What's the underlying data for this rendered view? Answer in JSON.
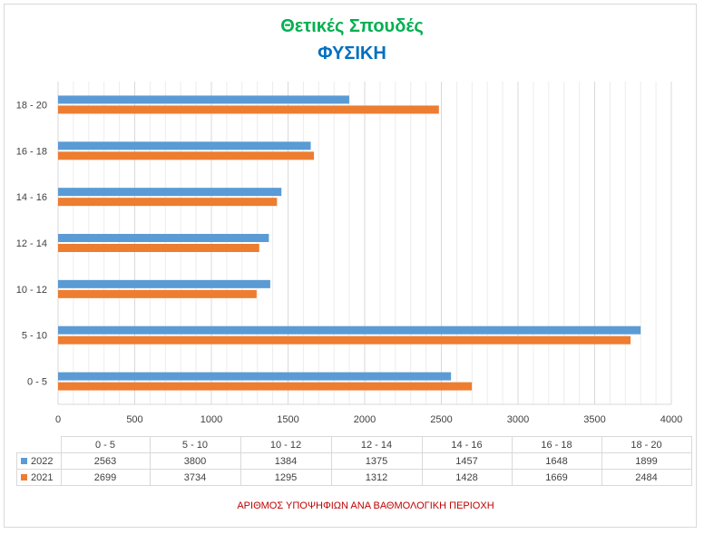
{
  "chart_data": {
    "type": "bar",
    "orientation": "horizontal",
    "title": "Θετικές Σπουδές",
    "subtitle": "ΦΥΣΙΚΗ",
    "categories": [
      "0 - 5",
      "5 - 10",
      "10 - 12",
      "12 - 14",
      "14 - 16",
      "16 - 18",
      "18 - 20"
    ],
    "series": [
      {
        "name": "2022",
        "color": "#5b9bd5",
        "values": [
          2563,
          3800,
          1384,
          1375,
          1457,
          1648,
          1899
        ]
      },
      {
        "name": "2021",
        "color": "#ed7d31",
        "values": [
          2699,
          3734,
          1295,
          1312,
          1428,
          1669,
          2484
        ]
      }
    ],
    "xlim": [
      0,
      4000
    ],
    "xticks": [
      "0",
      "500",
      "1000",
      "1500",
      "2000",
      "2500",
      "3000",
      "3500",
      "4000"
    ],
    "xlabel": "ΑΡΙΘΜΟΣ ΥΠΟΨΗΦΙΩΝ ΑΝΑ ΒΑΘΜΟΛΟΓΙΚΗ ΠΕΡΙΟΧΗ",
    "grid": true,
    "data_table": true
  },
  "colors": {
    "title": "#00b050",
    "subtitle": "#0070c0",
    "footer": "#c00000",
    "grid": "#d9d9d9"
  }
}
